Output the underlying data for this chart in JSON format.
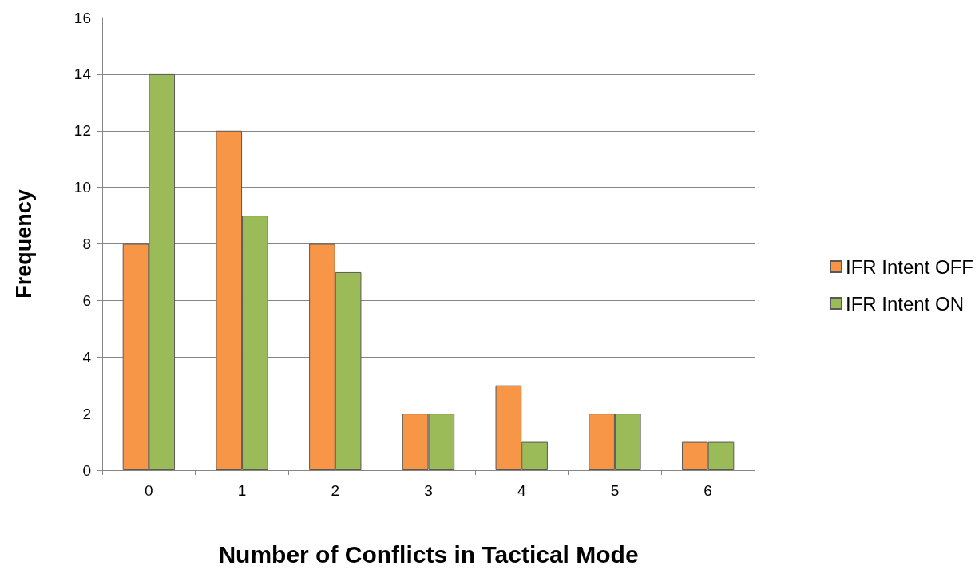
{
  "chart_data": {
    "type": "bar",
    "xlabel": "Number of Conflicts in Tactical Mode",
    "ylabel": "Frequency",
    "categories": [
      "0",
      "1",
      "2",
      "3",
      "4",
      "5",
      "6"
    ],
    "series": [
      {
        "name": "IFR Intent OFF",
        "color": "#f79646",
        "values": [
          8,
          12,
          8,
          2,
          3,
          2,
          1
        ]
      },
      {
        "name": "IFR Intent ON",
        "color": "#9bbb59",
        "values": [
          14,
          9,
          7,
          2,
          1,
          2,
          1
        ]
      }
    ],
    "ylim": [
      0,
      16
    ],
    "yticks": [
      0,
      2,
      4,
      6,
      8,
      10,
      12,
      14,
      16
    ],
    "grid": "y",
    "legend": "right"
  }
}
